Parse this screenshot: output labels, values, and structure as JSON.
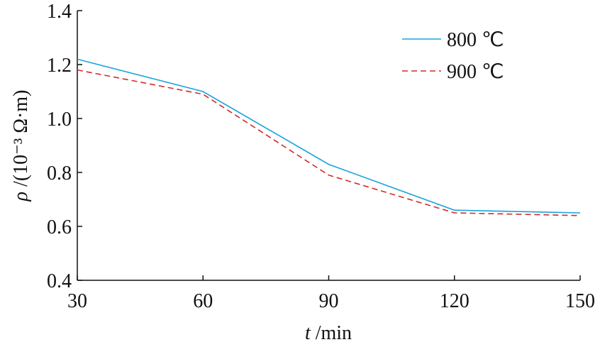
{
  "chart_data": {
    "type": "line",
    "title": "",
    "xlabel_var": "t",
    "xlabel_unit": " /min",
    "ylabel_var": "ρ",
    "ylabel_unit": " /(10⁻³ Ω·m)",
    "x": [
      30,
      60,
      90,
      120,
      150
    ],
    "xlim": [
      30,
      150
    ],
    "ylim": [
      0.4,
      1.4
    ],
    "xticks": [
      "30",
      "60",
      "90",
      "120",
      "150"
    ],
    "yticks": [
      "0.4",
      "0.6",
      "0.8",
      "1.0",
      "1.2",
      "1.4"
    ],
    "grid": false,
    "legend_position": "top-right",
    "series": [
      {
        "name": "800 ℃",
        "values": [
          1.22,
          1.1,
          0.83,
          0.66,
          0.65
        ],
        "color": "#1aa3dc",
        "style": "solid"
      },
      {
        "name": "900 ℃",
        "values": [
          1.18,
          1.09,
          0.79,
          0.65,
          0.64
        ],
        "color": "#d42a2a",
        "style": "dashed"
      }
    ]
  }
}
